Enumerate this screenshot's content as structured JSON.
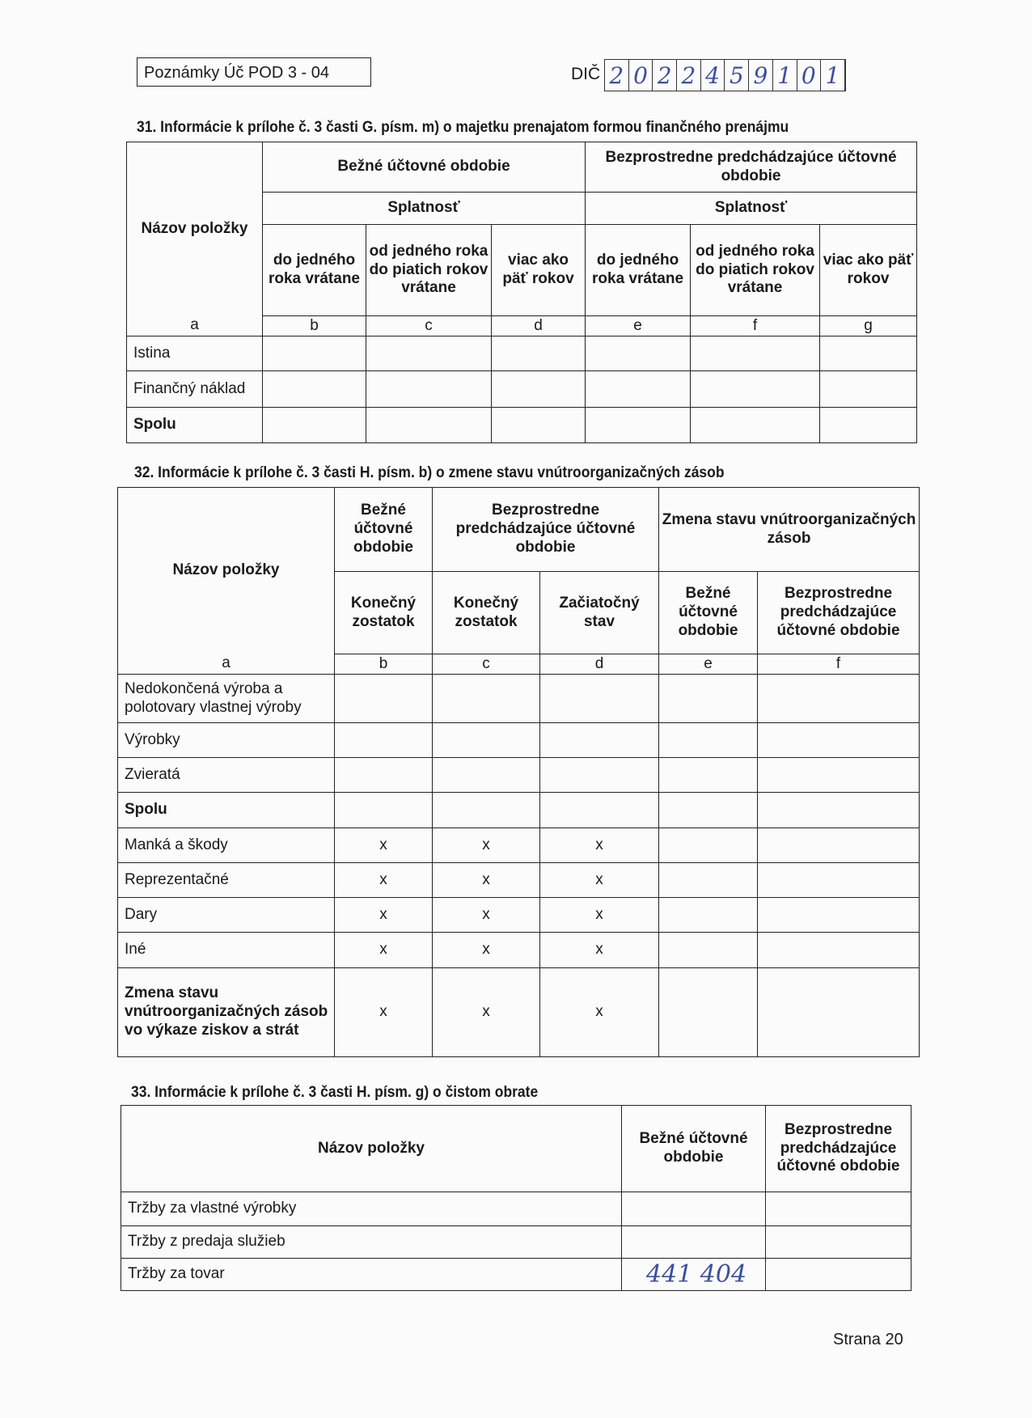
{
  "header": {
    "form_label": "Poznámky Úč POD 3 - 04",
    "dic_label": "DIČ",
    "dic_digits": [
      "2",
      "0",
      "2",
      "2",
      "4",
      "5",
      "9",
      "1",
      "0",
      "1"
    ]
  },
  "s31": {
    "title": "31. Informácie k prílohe č. 3 časti G. písm. m) o majetku prenajatom formou finančného prenájmu",
    "col_name": "Názov položky",
    "current": "Bežné účtovné obdobie",
    "previous": "Bezprostredne predchádzajúce účtovné obdobie",
    "maturity": "Splatnosť",
    "sub": [
      "do jedného roka vrátane",
      "od jedného roka do piatich rokov vrátane",
      "viac ako päť rokov",
      "do jedného roka vrátane",
      "od jedného roka do piatich rokov vrátane",
      "viac ako päť rokov"
    ],
    "letters": [
      "a",
      "b",
      "c",
      "d",
      "e",
      "f",
      "g"
    ],
    "rows": [
      {
        "label": "Istina",
        "bold": false,
        "cells": [
          "",
          "",
          "",
          "",
          "",
          ""
        ]
      },
      {
        "label": "Finančný náklad",
        "bold": false,
        "cells": [
          "",
          "",
          "",
          "",
          "",
          ""
        ]
      },
      {
        "label": "Spolu",
        "bold": true,
        "cells": [
          "",
          "",
          "",
          "",
          "",
          ""
        ]
      }
    ]
  },
  "s32": {
    "title": "32. Informácie k prílohe č. 3 časti H. písm. b) o zmene stavu vnútroorganizačných zásob",
    "col_name": "Názov položky",
    "current": "Bežné účtovné obdobie",
    "previous": "Bezprostredne predchádzajúce účtovné obdobie",
    "change": "Zmena stavu vnútroorganizačných zásob",
    "sub": [
      "Konečný zostatok",
      "Konečný zostatok",
      "Začiatočný stav",
      "Bežné účtovné obdobie",
      "Bezprostredne predchádzajúce účtovné obdobie"
    ],
    "letters": [
      "a",
      "b",
      "c",
      "d",
      "e",
      "f"
    ],
    "rows": [
      {
        "label": "Nedokončená výroba a polotovary vlastnej výroby",
        "bold": false,
        "cells": [
          "",
          "",
          "",
          "",
          ""
        ]
      },
      {
        "label": "Výrobky",
        "bold": false,
        "cells": [
          "",
          "",
          "",
          "",
          ""
        ]
      },
      {
        "label": "Zvieratá",
        "bold": false,
        "cells": [
          "",
          "",
          "",
          "",
          ""
        ]
      },
      {
        "label": "Spolu",
        "bold": true,
        "cells": [
          "",
          "",
          "",
          "",
          ""
        ]
      },
      {
        "label": "Manká a škody",
        "bold": false,
        "cells": [
          "x",
          "x",
          "x",
          "",
          ""
        ]
      },
      {
        "label": "Reprezentačné",
        "bold": false,
        "cells": [
          "x",
          "x",
          "x",
          "",
          ""
        ]
      },
      {
        "label": "Dary",
        "bold": false,
        "cells": [
          "x",
          "x",
          "x",
          "",
          ""
        ]
      },
      {
        "label": "Iné",
        "bold": false,
        "cells": [
          "x",
          "x",
          "x",
          "",
          ""
        ]
      },
      {
        "label": "Zmena stavu vnútroorganizačných zásob vo výkaze ziskov a strát",
        "bold": true,
        "cells": [
          "x",
          "x",
          "x",
          "",
          ""
        ]
      }
    ]
  },
  "s33": {
    "title": "33. Informácie k prílohe č. 3 časti H. písm. g) o čistom obrate",
    "col_name": "Názov položky",
    "current": "Bežné účtovné obdobie",
    "previous": "Bezprostredne predchádzajúce účtovné obdobie",
    "rows": [
      {
        "label": "Tržby za vlastné výrobky",
        "cells": [
          "",
          ""
        ]
      },
      {
        "label": "Tržby z predaja služieb",
        "cells": [
          "",
          ""
        ]
      },
      {
        "label": "Tržby za tovar",
        "cells": [
          "441 404",
          ""
        ]
      }
    ]
  },
  "footer": {
    "page": "Strana 20"
  }
}
